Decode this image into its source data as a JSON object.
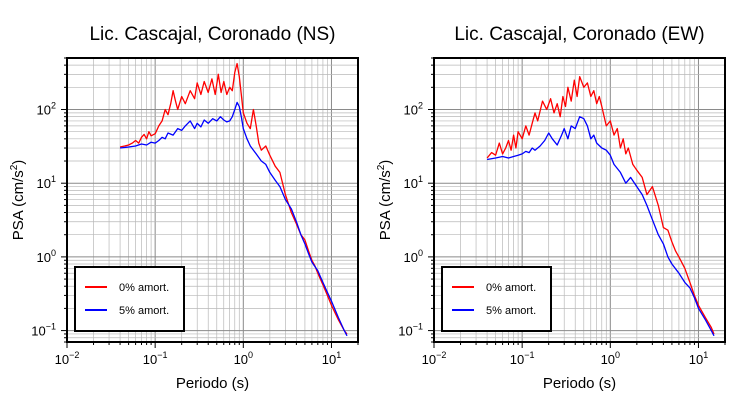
{
  "chart_data": [
    {
      "type": "line",
      "title": "Lic. Cascajal, Coronado (NS)",
      "xlabel": "Periodo (s)",
      "ylabel_main": "PSA (cm/s",
      "ylabel_sup": "2",
      "ylabel_end": ")",
      "xscale": "log",
      "yscale": "log",
      "xlim": [
        0.01,
        20
      ],
      "ylim": [
        0.07,
        500
      ],
      "grid": true,
      "legend_position": "bottom-left",
      "xticks": [
        {
          "base": "10",
          "exp": "−2",
          "value": 0.01
        },
        {
          "base": "10",
          "exp": "−1",
          "value": 0.1
        },
        {
          "base": "10",
          "exp": "0",
          "value": 1
        },
        {
          "base": "10",
          "exp": "1",
          "value": 10
        }
      ],
      "yticks": [
        {
          "base": "10",
          "exp": "−1",
          "value": 0.1
        },
        {
          "base": "10",
          "exp": "0",
          "value": 1
        },
        {
          "base": "10",
          "exp": "1",
          "value": 10
        },
        {
          "base": "10",
          "exp": "2",
          "value": 100
        }
      ],
      "series": [
        {
          "name": "0% amort.",
          "color": "#ff0000",
          "points": [
            [
              0.04,
              31
            ],
            [
              0.045,
              32
            ],
            [
              0.05,
              33
            ],
            [
              0.055,
              35
            ],
            [
              0.06,
              38
            ],
            [
              0.065,
              35
            ],
            [
              0.07,
              42
            ],
            [
              0.075,
              46
            ],
            [
              0.08,
              40
            ],
            [
              0.085,
              50
            ],
            [
              0.09,
              44
            ],
            [
              0.1,
              47
            ],
            [
              0.11,
              60
            ],
            [
              0.12,
              70
            ],
            [
              0.13,
              100
            ],
            [
              0.14,
              85
            ],
            [
              0.15,
              120
            ],
            [
              0.16,
              180
            ],
            [
              0.17,
              130
            ],
            [
              0.18,
              100
            ],
            [
              0.2,
              150
            ],
            [
              0.22,
              120
            ],
            [
              0.25,
              180
            ],
            [
              0.28,
              140
            ],
            [
              0.3,
              230
            ],
            [
              0.33,
              160
            ],
            [
              0.36,
              240
            ],
            [
              0.4,
              170
            ],
            [
              0.44,
              260
            ],
            [
              0.48,
              160
            ],
            [
              0.52,
              300
            ],
            [
              0.56,
              170
            ],
            [
              0.6,
              240
            ],
            [
              0.65,
              160
            ],
            [
              0.7,
              200
            ],
            [
              0.75,
              180
            ],
            [
              0.8,
              320
            ],
            [
              0.85,
              420
            ],
            [
              0.9,
              280
            ],
            [
              0.95,
              160
            ],
            [
              1.0,
              90
            ],
            [
              1.1,
              65
            ],
            [
              1.2,
              55
            ],
            [
              1.3,
              100
            ],
            [
              1.4,
              60
            ],
            [
              1.5,
              35
            ],
            [
              1.6,
              28
            ],
            [
              1.8,
              32
            ],
            [
              2.0,
              24
            ],
            [
              2.3,
              17
            ],
            [
              2.6,
              14
            ],
            [
              3.0,
              7
            ],
            [
              3.5,
              4
            ],
            [
              4.0,
              2.8
            ],
            [
              4.5,
              2.0
            ],
            [
              5.0,
              1.7
            ],
            [
              5.5,
              1.2
            ],
            [
              6.0,
              0.9
            ],
            [
              6.5,
              0.75
            ],
            [
              7.0,
              0.6
            ],
            [
              8.0,
              0.42
            ],
            [
              9.0,
              0.3
            ],
            [
              10,
              0.22
            ],
            [
              12,
              0.14
            ],
            [
              14,
              0.1
            ],
            [
              15,
              0.09
            ]
          ]
        },
        {
          "name": "5% amort.",
          "color": "#0000ff",
          "points": [
            [
              0.04,
              30
            ],
            [
              0.05,
              31
            ],
            [
              0.06,
              32
            ],
            [
              0.07,
              34
            ],
            [
              0.08,
              33
            ],
            [
              0.09,
              36
            ],
            [
              0.1,
              35
            ],
            [
              0.11,
              38
            ],
            [
              0.12,
              42
            ],
            [
              0.13,
              40
            ],
            [
              0.14,
              48
            ],
            [
              0.16,
              45
            ],
            [
              0.18,
              55
            ],
            [
              0.2,
              52
            ],
            [
              0.22,
              60
            ],
            [
              0.25,
              70
            ],
            [
              0.28,
              55
            ],
            [
              0.3,
              65
            ],
            [
              0.33,
              58
            ],
            [
              0.36,
              72
            ],
            [
              0.4,
              65
            ],
            [
              0.45,
              75
            ],
            [
              0.5,
              70
            ],
            [
              0.55,
              80
            ],
            [
              0.6,
              72
            ],
            [
              0.65,
              68
            ],
            [
              0.7,
              70
            ],
            [
              0.75,
              80
            ],
            [
              0.8,
              100
            ],
            [
              0.85,
              125
            ],
            [
              0.9,
              110
            ],
            [
              0.95,
              80
            ],
            [
              1.0,
              55
            ],
            [
              1.1,
              40
            ],
            [
              1.2,
              32
            ],
            [
              1.4,
              25
            ],
            [
              1.6,
              20
            ],
            [
              1.8,
              18
            ],
            [
              2.0,
              14
            ],
            [
              2.3,
              11
            ],
            [
              2.6,
              9
            ],
            [
              3.0,
              6
            ],
            [
              3.5,
              4.5
            ],
            [
              4.0,
              3
            ],
            [
              4.5,
              2.0
            ],
            [
              5.0,
              1.5
            ],
            [
              5.5,
              1.1
            ],
            [
              6.0,
              0.85
            ],
            [
              7.0,
              0.65
            ],
            [
              8.0,
              0.45
            ],
            [
              9.0,
              0.33
            ],
            [
              10,
              0.25
            ],
            [
              12,
              0.15
            ],
            [
              14,
              0.1
            ],
            [
              15,
              0.085
            ]
          ]
        }
      ]
    },
    {
      "type": "line",
      "title": "Lic. Cascajal, Coronado (EW)",
      "xlabel": "Periodo (s)",
      "ylabel_main": "PSA (cm/s",
      "ylabel_sup": "2",
      "ylabel_end": ")",
      "xscale": "log",
      "yscale": "log",
      "xlim": [
        0.01,
        20
      ],
      "ylim": [
        0.07,
        500
      ],
      "grid": true,
      "legend_position": "bottom-left",
      "xticks": [
        {
          "base": "10",
          "exp": "−2",
          "value": 0.01
        },
        {
          "base": "10",
          "exp": "−1",
          "value": 0.1
        },
        {
          "base": "10",
          "exp": "0",
          "value": 1
        },
        {
          "base": "10",
          "exp": "1",
          "value": 10
        }
      ],
      "yticks": [
        {
          "base": "10",
          "exp": "−1",
          "value": 0.1
        },
        {
          "base": "10",
          "exp": "0",
          "value": 1
        },
        {
          "base": "10",
          "exp": "1",
          "value": 10
        },
        {
          "base": "10",
          "exp": "2",
          "value": 100
        }
      ],
      "series": [
        {
          "name": "0% amort.",
          "color": "#ff0000",
          "points": [
            [
              0.04,
              22
            ],
            [
              0.045,
              26
            ],
            [
              0.05,
              24
            ],
            [
              0.055,
              35
            ],
            [
              0.06,
              25
            ],
            [
              0.065,
              30
            ],
            [
              0.07,
              38
            ],
            [
              0.075,
              28
            ],
            [
              0.08,
              45
            ],
            [
              0.085,
              30
            ],
            [
              0.09,
              50
            ],
            [
              0.1,
              40
            ],
            [
              0.11,
              60
            ],
            [
              0.12,
              45
            ],
            [
              0.13,
              65
            ],
            [
              0.14,
              90
            ],
            [
              0.15,
              70
            ],
            [
              0.17,
              130
            ],
            [
              0.19,
              100
            ],
            [
              0.21,
              140
            ],
            [
              0.23,
              90
            ],
            [
              0.25,
              120
            ],
            [
              0.27,
              80
            ],
            [
              0.29,
              150
            ],
            [
              0.31,
              110
            ],
            [
              0.33,
              200
            ],
            [
              0.36,
              130
            ],
            [
              0.39,
              250
            ],
            [
              0.42,
              150
            ],
            [
              0.45,
              280
            ],
            [
              0.5,
              200
            ],
            [
              0.55,
              230
            ],
            [
              0.6,
              150
            ],
            [
              0.65,
              180
            ],
            [
              0.7,
              120
            ],
            [
              0.75,
              150
            ],
            [
              0.8,
              110
            ],
            [
              0.9,
              60
            ],
            [
              1.0,
              70
            ],
            [
              1.1,
              45
            ],
            [
              1.2,
              55
            ],
            [
              1.3,
              30
            ],
            [
              1.4,
              40
            ],
            [
              1.5,
              25
            ],
            [
              1.6,
              30
            ],
            [
              1.8,
              18
            ],
            [
              2.0,
              15
            ],
            [
              2.3,
              12
            ],
            [
              2.6,
              7
            ],
            [
              3.0,
              9
            ],
            [
              3.5,
              5
            ],
            [
              4.0,
              2.5
            ],
            [
              4.5,
              2.3
            ],
            [
              5.0,
              1.6
            ],
            [
              5.5,
              1.2
            ],
            [
              6.0,
              1.0
            ],
            [
              7.0,
              0.7
            ],
            [
              8.0,
              0.45
            ],
            [
              9.0,
              0.3
            ],
            [
              10,
              0.22
            ],
            [
              12,
              0.15
            ],
            [
              14,
              0.11
            ],
            [
              15,
              0.09
            ]
          ]
        },
        {
          "name": "5% amort.",
          "color": "#0000ff",
          "points": [
            [
              0.04,
              21
            ],
            [
              0.05,
              22
            ],
            [
              0.06,
              23
            ],
            [
              0.07,
              22
            ],
            [
              0.08,
              23
            ],
            [
              0.09,
              24
            ],
            [
              0.1,
              25
            ],
            [
              0.11,
              27
            ],
            [
              0.12,
              26
            ],
            [
              0.13,
              30
            ],
            [
              0.14,
              28
            ],
            [
              0.16,
              32
            ],
            [
              0.18,
              38
            ],
            [
              0.2,
              48
            ],
            [
              0.22,
              40
            ],
            [
              0.25,
              33
            ],
            [
              0.28,
              45
            ],
            [
              0.3,
              55
            ],
            [
              0.33,
              40
            ],
            [
              0.36,
              60
            ],
            [
              0.4,
              55
            ],
            [
              0.45,
              80
            ],
            [
              0.5,
              75
            ],
            [
              0.55,
              60
            ],
            [
              0.6,
              40
            ],
            [
              0.65,
              45
            ],
            [
              0.7,
              35
            ],
            [
              0.8,
              30
            ],
            [
              0.9,
              28
            ],
            [
              1.0,
              24
            ],
            [
              1.1,
              18
            ],
            [
              1.3,
              14
            ],
            [
              1.5,
              10
            ],
            [
              1.7,
              12
            ],
            [
              2.0,
              9
            ],
            [
              2.3,
              7
            ],
            [
              2.6,
              5
            ],
            [
              3.0,
              3.2
            ],
            [
              3.5,
              2.0
            ],
            [
              4.0,
              1.5
            ],
            [
              4.5,
              1.0
            ],
            [
              5.0,
              0.8
            ],
            [
              6.0,
              0.6
            ],
            [
              7.0,
              0.45
            ],
            [
              8.0,
              0.38
            ],
            [
              9.0,
              0.28
            ],
            [
              10,
              0.2
            ],
            [
              12,
              0.14
            ],
            [
              14,
              0.1
            ],
            [
              15,
              0.085
            ]
          ]
        }
      ]
    }
  ]
}
